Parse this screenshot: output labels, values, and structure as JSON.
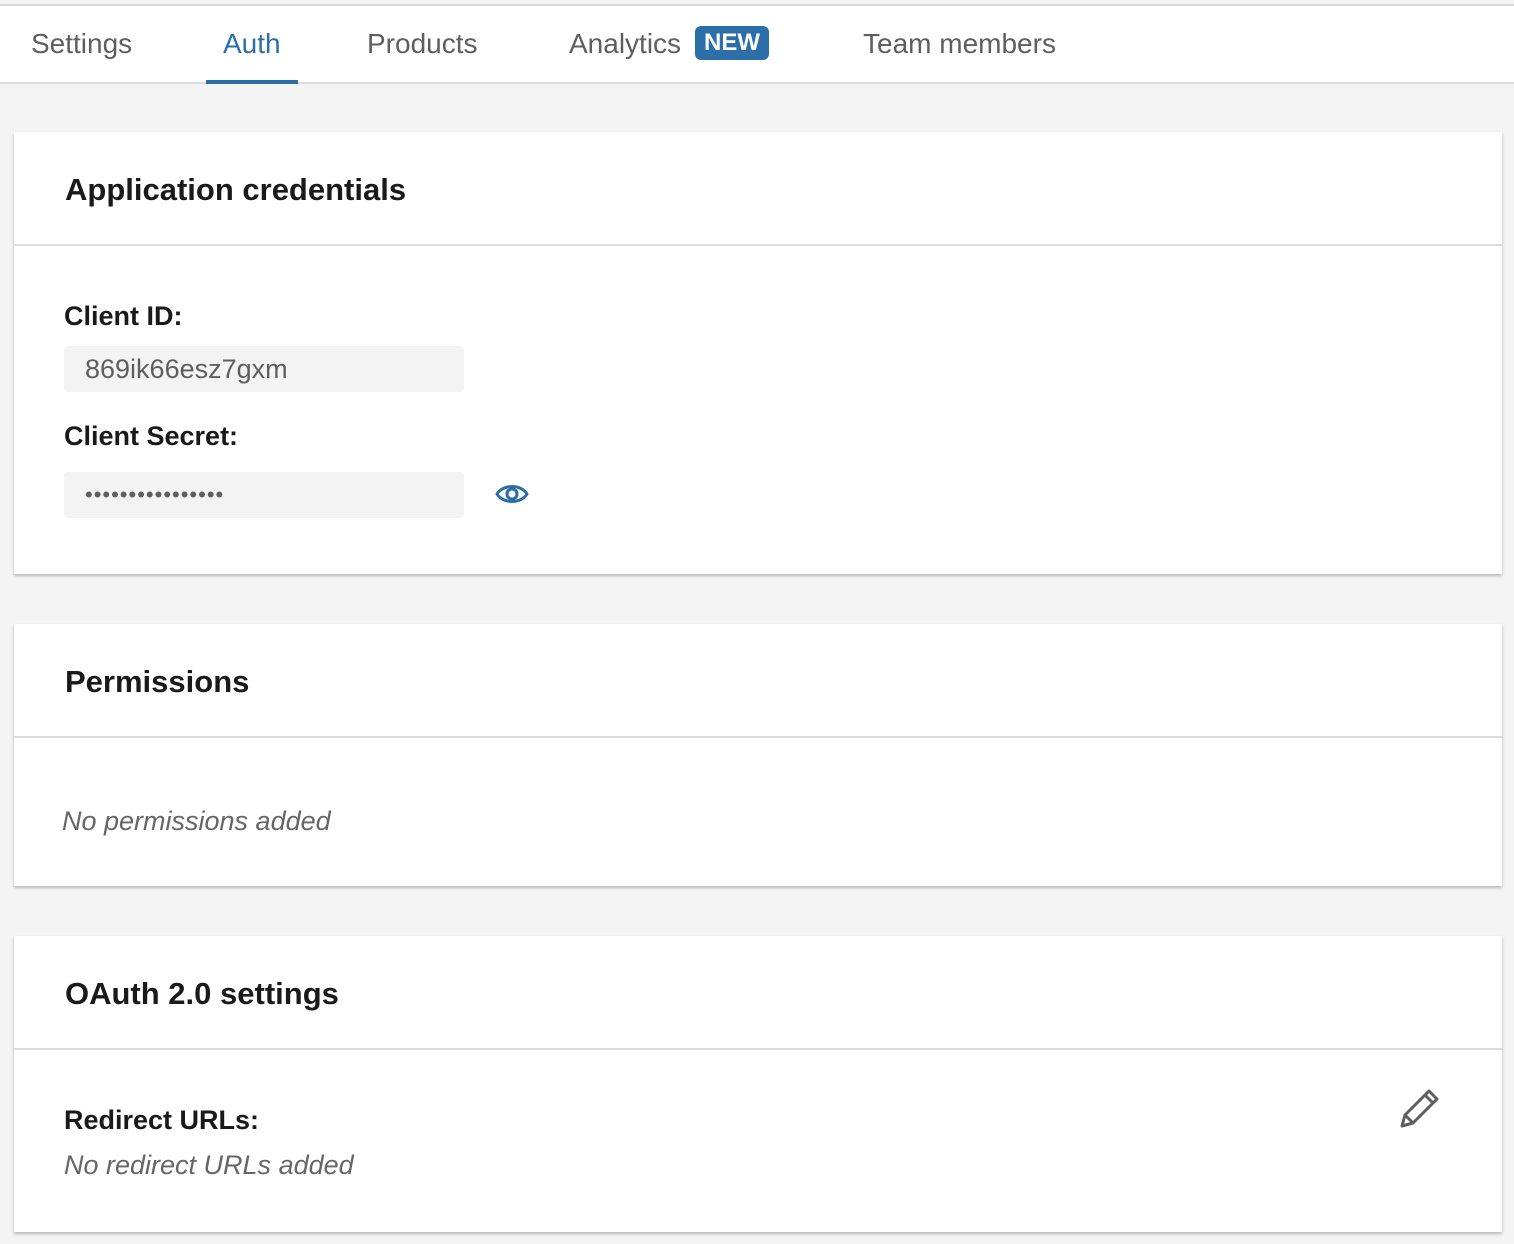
{
  "tabs": [
    {
      "label": "Settings",
      "active": false
    },
    {
      "label": "Auth",
      "active": true
    },
    {
      "label": "Products",
      "active": false
    },
    {
      "label": "Analytics",
      "active": false,
      "badge": "NEW"
    },
    {
      "label": "Team members",
      "active": false
    }
  ],
  "accent_color": "#2b6ea8",
  "credentials": {
    "title": "Application credentials",
    "client_id_label": "Client ID:",
    "client_id_value": "869ik66esz7gxm",
    "client_secret_label": "Client Secret:",
    "client_secret_value": "••••••••••••••••",
    "reveal_icon": "eye-icon"
  },
  "permissions": {
    "title": "Permissions",
    "empty_text": "No permissions added"
  },
  "oauth": {
    "title": "OAuth 2.0 settings",
    "redirect_label": "Redirect URLs:",
    "redirect_empty": "No redirect URLs added",
    "edit_icon": "pencil-icon"
  }
}
